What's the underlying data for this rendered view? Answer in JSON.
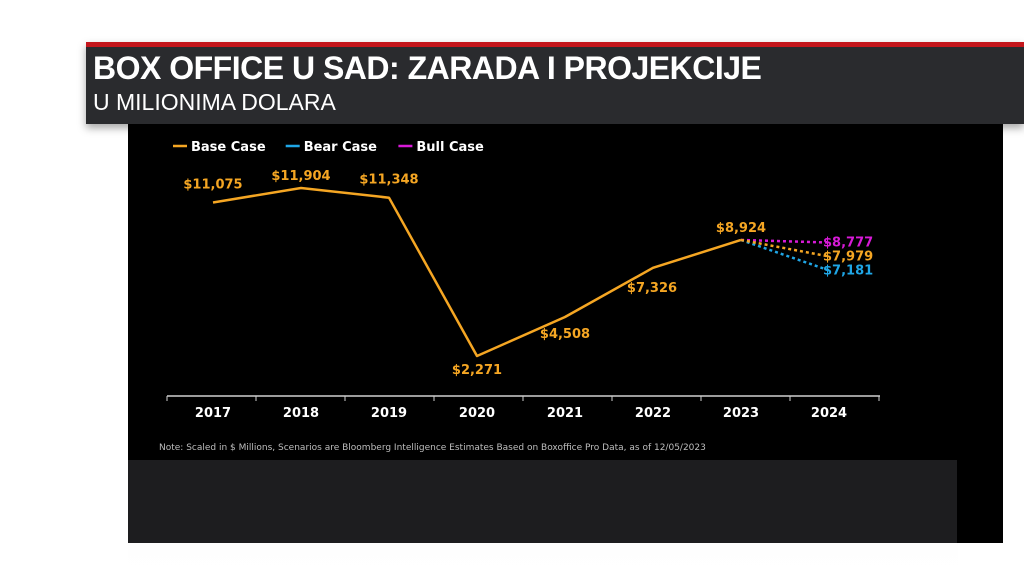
{
  "banner": {
    "title": "BOX OFFICE U SAD: ZARADA I PROJEKCIJE",
    "subtitle": "U MILIONIMA DOLARA"
  },
  "chart_data": {
    "type": "line",
    "categories": [
      "2017",
      "2018",
      "2019",
      "2020",
      "2021",
      "2022",
      "2023",
      "2024"
    ],
    "ylim": [
      0,
      13000
    ],
    "grid": false,
    "legend": "top-left",
    "series": [
      {
        "name": "Base Case",
        "color": "#f5a623",
        "dashed": false,
        "values": [
          11075,
          11904,
          11348,
          2271,
          4508,
          7326,
          8924,
          null
        ],
        "labels": [
          "$11,075",
          "$11,904",
          "$11,348",
          "$2,271",
          "$4,508",
          "$7,326",
          "$8,924",
          null
        ]
      },
      {
        "name": "Bear Case",
        "color": "#1fa6e6",
        "dashed": true,
        "values": [
          null,
          null,
          null,
          null,
          null,
          null,
          8924,
          7181
        ],
        "labels": [
          null,
          null,
          null,
          null,
          null,
          null,
          null,
          "$7,181"
        ]
      },
      {
        "name": "Bull Case",
        "color": "#d81ad8",
        "dashed": true,
        "values": [
          null,
          null,
          null,
          null,
          null,
          null,
          8924,
          8777
        ],
        "labels": [
          null,
          null,
          null,
          null,
          null,
          null,
          null,
          "$8,777"
        ]
      },
      {
        "name": "Base Case",
        "color": "#f5a623",
        "dashed": true,
        "legend": false,
        "values": [
          null,
          null,
          null,
          null,
          null,
          null,
          8924,
          7979
        ],
        "labels": [
          null,
          null,
          null,
          null,
          null,
          null,
          null,
          "$7,979"
        ]
      }
    ],
    "note": "Note: Scaled in $ Millions, Scenarios are Bloomberg Intelligence Estimates Based on Boxoffice Pro Data, as of 12/05/2023"
  }
}
